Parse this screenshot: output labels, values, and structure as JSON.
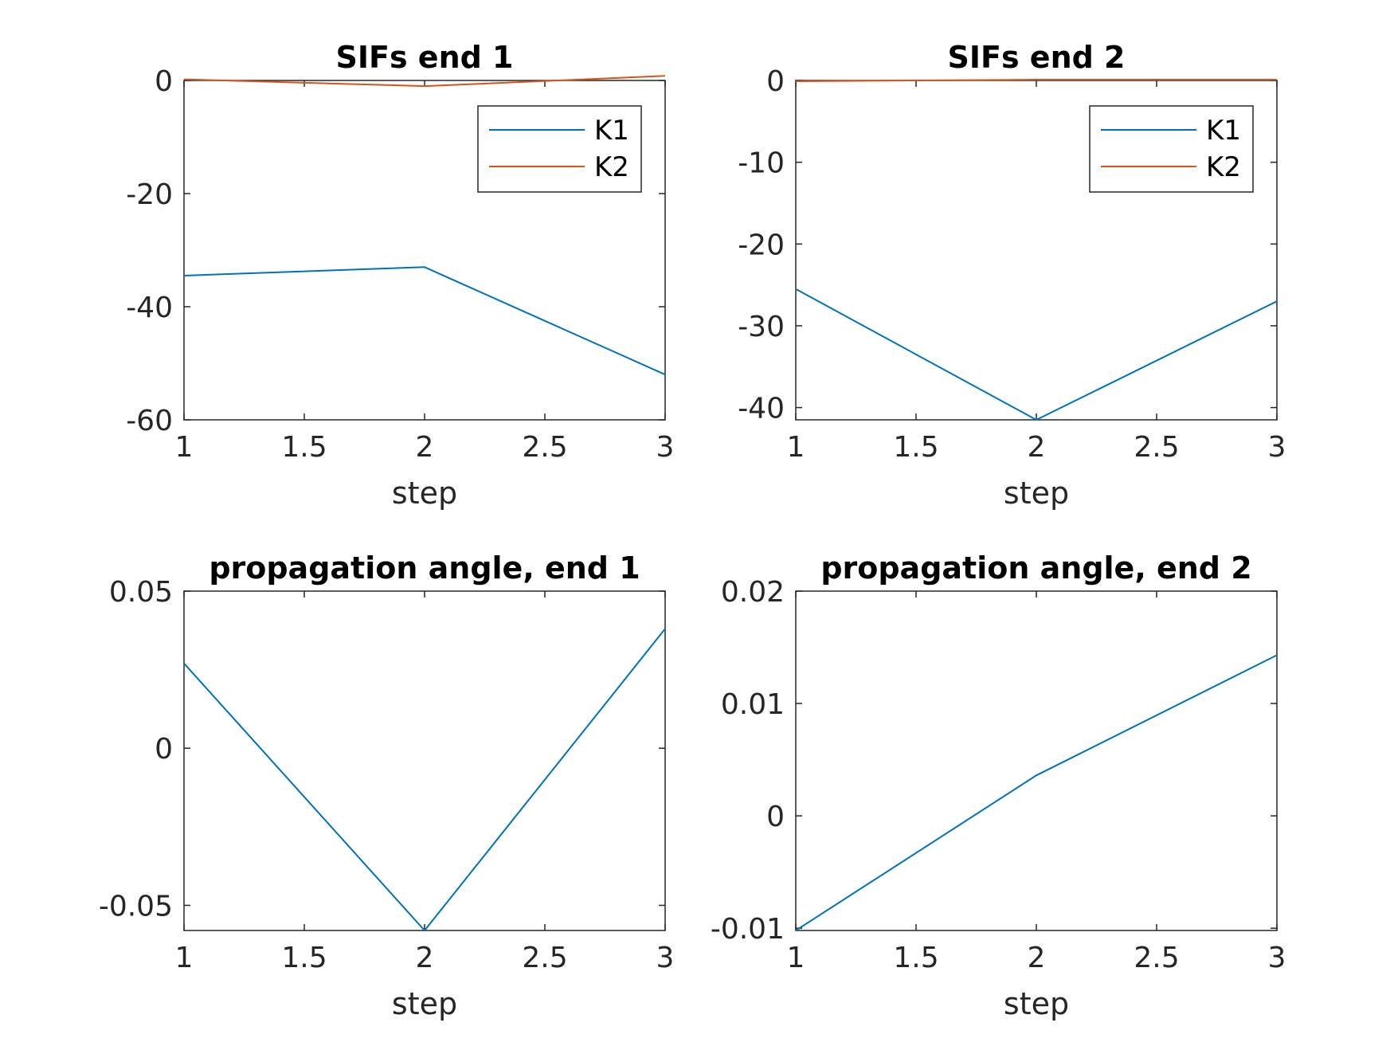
{
  "chart_data": [
    {
      "type": "line",
      "title": "SIFs end 1",
      "xlabel": "step",
      "ylabel": "",
      "xlim": [
        1,
        3
      ],
      "ylim": [
        -60,
        0
      ],
      "xticks": [
        "1",
        "1.5",
        "2",
        "2.5",
        "3"
      ],
      "yticks": [
        "0",
        "-20",
        "-40",
        "-60"
      ],
      "x": [
        1,
        2,
        3
      ],
      "series": [
        {
          "name": "K1",
          "color": "#0072BD",
          "values": [
            -34.5,
            -33.0,
            -52.0
          ]
        },
        {
          "name": "K2",
          "color": "#D95319",
          "values": [
            0.2,
            -1.0,
            0.8
          ]
        }
      ],
      "legend": "top-right",
      "grid": false
    },
    {
      "type": "line",
      "title": "SIFs end 2",
      "xlabel": "step",
      "ylabel": "",
      "xlim": [
        1,
        3
      ],
      "ylim": [
        -41.5,
        0
      ],
      "xticks": [
        "1",
        "1.5",
        "2",
        "2.5",
        "3"
      ],
      "yticks": [
        "0",
        "-10",
        "-20",
        "-30",
        "-40"
      ],
      "x": [
        1,
        2,
        3
      ],
      "series": [
        {
          "name": "K1",
          "color": "#0072BD",
          "values": [
            -25.5,
            -41.5,
            -27.0
          ]
        },
        {
          "name": "K2",
          "color": "#D95319",
          "values": [
            -0.1,
            0.1,
            0.1
          ]
        }
      ],
      "legend": "top-right",
      "grid": false
    },
    {
      "type": "line",
      "title": "propagation angle, end 1",
      "xlabel": "step",
      "ylabel": "",
      "xlim": [
        1,
        3
      ],
      "ylim": [
        -0.058,
        0.05
      ],
      "xticks": [
        "1",
        "1.5",
        "2",
        "2.5",
        "3"
      ],
      "yticks": [
        "0.05",
        "0",
        "-0.05"
      ],
      "x": [
        1,
        2,
        3
      ],
      "series": [
        {
          "color": "#0072BD",
          "values": [
            0.027,
            -0.058,
            0.038
          ]
        }
      ],
      "grid": false
    },
    {
      "type": "line",
      "title": "propagation angle, end 2",
      "xlabel": "step",
      "ylabel": "",
      "xlim": [
        1,
        3
      ],
      "ylim": [
        -0.0102,
        0.02
      ],
      "xticks": [
        "1",
        "1.5",
        "2",
        "2.5",
        "3"
      ],
      "yticks": [
        "0.02",
        "0.01",
        "0",
        "-0.01"
      ],
      "x": [
        1,
        2,
        3
      ],
      "series": [
        {
          "color": "#0072BD",
          "values": [
            -0.0102,
            0.0036,
            0.0143
          ]
        }
      ],
      "grid": false
    }
  ]
}
